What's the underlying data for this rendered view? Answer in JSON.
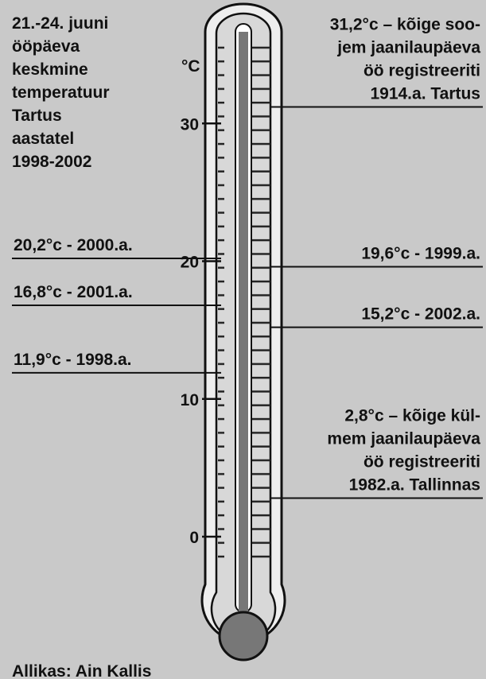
{
  "chart_data": {
    "type": "thermometer",
    "title": [
      "21.-24. juuni",
      "ööpäeva",
      "keskmine",
      "temperatuur",
      "Tartus",
      "aastatel",
      "1998-2002"
    ],
    "unit": "°C",
    "ylim": [
      -3,
      37
    ],
    "yticks": [
      0,
      10,
      20,
      30
    ],
    "annotations_left": [
      {
        "label": [
          "20,2°c - 2000.a."
        ],
        "value": 20.2
      },
      {
        "label": [
          "16,8°c - 2001.a."
        ],
        "value": 16.8
      },
      {
        "label": [
          "11,9°c - 1998.a."
        ],
        "value": 11.9
      }
    ],
    "annotations_right": [
      {
        "label": [
          "31,2°c – kõige soo-",
          "jem jaanilaupäeva",
          "öö registreeriti",
          "1914.a. Tartus"
        ],
        "value": 31.2
      },
      {
        "label": [
          "19,6°c - 1999.a."
        ],
        "value": 19.6
      },
      {
        "label": [
          "15,2°c - 2002.a."
        ],
        "value": 15.2
      },
      {
        "label": [
          "2,8°c – kõige kül-",
          "mem jaanilaupäeva",
          "öö registreeriti",
          "1982.a. Tallinnas"
        ],
        "value": 2.8
      }
    ],
    "source": "Allikas: Ain Kallis"
  }
}
